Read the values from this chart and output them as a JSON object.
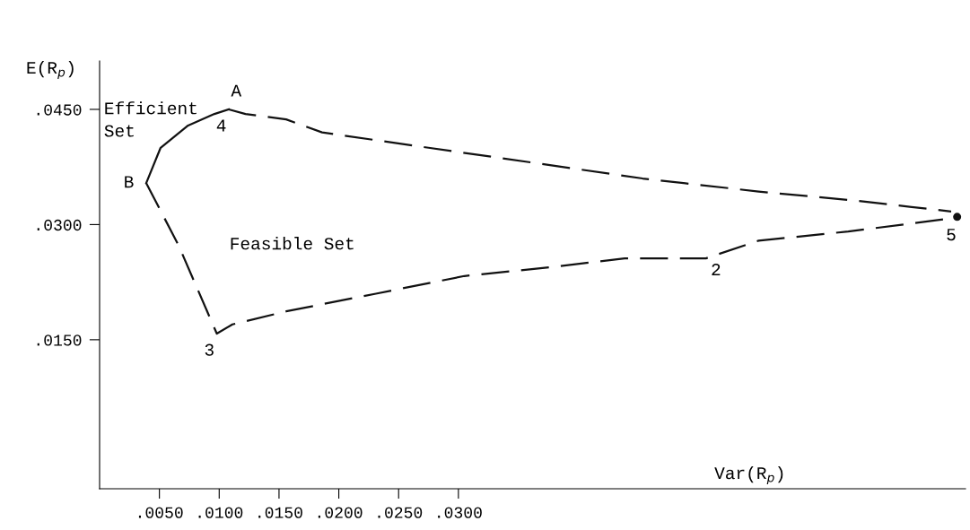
{
  "chart_data": {
    "type": "line",
    "xlabel": "Var(R$_{p}$)",
    "ylabel": "E(R$_{p}$)",
    "xlim": [
      0,
      0.0724
    ],
    "ylim": [
      -0.0044,
      0.0513
    ],
    "xticks": [
      {
        "value": 0.005,
        "label": ".0050"
      },
      {
        "value": 0.01,
        "label": ".0100"
      },
      {
        "value": 0.015,
        "label": ".0150"
      },
      {
        "value": 0.02,
        "label": ".0200"
      },
      {
        "value": 0.025,
        "label": ".0250"
      },
      {
        "value": 0.03,
        "label": ".0300"
      }
    ],
    "yticks": [
      {
        "value": 0.015,
        "label": ".0150"
      },
      {
        "value": 0.03,
        "label": ".0300"
      },
      {
        "value": 0.045,
        "label": ".0450"
      }
    ],
    "grid": false,
    "series": [
      {
        "color": "#111111",
        "line_style": "solid",
        "x": [
          0.0039,
          0.0051,
          0.0074,
          0.0096,
          0.0108
        ],
        "values": [
          0.0354,
          0.04,
          0.0429,
          0.0444,
          0.045
        ]
      },
      {
        "color": "#111111",
        "line_style": "dashed",
        "x": [
          0.0108,
          0.0122,
          0.0156,
          0.0186,
          0.0275,
          0.0365,
          0.0454,
          0.0551,
          0.0633,
          0.0712
        ],
        "values": [
          0.045,
          0.0444,
          0.0437,
          0.042,
          0.04,
          0.038,
          0.036,
          0.0343,
          0.0331,
          0.0317
        ]
      },
      {
        "color": "#111111",
        "line_style": "dashed",
        "x": [
          0.0039,
          0.0066,
          0.0098,
          0.0111,
          0.0156,
          0.0231,
          0.0305,
          0.038,
          0.0439,
          0.0507,
          0.0551,
          0.0626,
          0.0712
        ],
        "values": [
          0.0354,
          0.0273,
          0.0158,
          0.017,
          0.0187,
          0.021,
          0.0233,
          0.0245,
          0.0256,
          0.0256,
          0.0279,
          0.0291,
          0.0308
        ]
      },
      {
        "type": "scatter",
        "marker": "circle",
        "color": "#111111",
        "x": [
          0.0717
        ],
        "values": [
          0.031
        ]
      }
    ],
    "annotations": [
      {
        "text": "A",
        "x": 0.0108,
        "y": 0.045
      },
      {
        "text": "4",
        "x": 0.0108,
        "y": 0.045
      },
      {
        "text": "B",
        "x": 0.0039,
        "y": 0.0354
      },
      {
        "text": "3",
        "x": 0.0098,
        "y": 0.0158
      },
      {
        "text": "2",
        "x": 0.0507,
        "y": 0.0256
      },
      {
        "text": "5",
        "x": 0.0712,
        "y": 0.0308
      },
      "Efficient\nSet",
      "Feasible Set"
    ]
  }
}
